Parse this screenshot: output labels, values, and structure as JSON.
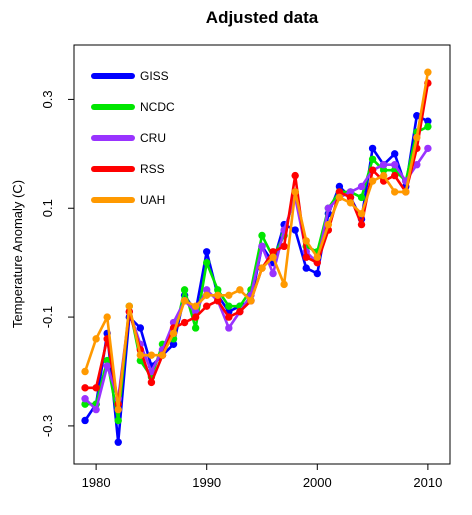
{
  "chart_data": {
    "type": "line",
    "title": "Adjusted data",
    "xlabel": "",
    "ylabel": "Temperature Anomaly (C)",
    "xlim": [
      1978,
      2012
    ],
    "ylim": [
      -0.37,
      0.4
    ],
    "x_ticks": [
      1980,
      1990,
      2000,
      2010
    ],
    "y_ticks": [
      -0.3,
      -0.1,
      0.1,
      0.3
    ],
    "y_tick_labels": [
      "-0.3",
      "-0.1",
      "0.1",
      "0.3"
    ],
    "grid": false,
    "legend_position": "top-left",
    "x": [
      1979,
      1980,
      1981,
      1982,
      1983,
      1984,
      1985,
      1986,
      1987,
      1988,
      1989,
      1990,
      1991,
      1992,
      1993,
      1994,
      1995,
      1996,
      1997,
      1998,
      1999,
      2000,
      2001,
      2002,
      2003,
      2004,
      2005,
      2006,
      2007,
      2008,
      2009,
      2010
    ],
    "series": [
      {
        "name": "GISS",
        "color": "#0000ff",
        "values": [
          -0.29,
          -0.26,
          -0.13,
          -0.33,
          -0.1,
          -0.12,
          -0.19,
          -0.17,
          -0.15,
          -0.06,
          -0.09,
          0.02,
          -0.06,
          -0.09,
          -0.08,
          -0.07,
          0.03,
          0.0,
          0.07,
          0.06,
          -0.01,
          -0.02,
          0.09,
          0.14,
          0.12,
          0.08,
          0.21,
          0.18,
          0.2,
          0.14,
          0.27,
          0.26
        ]
      },
      {
        "name": "NCDC",
        "color": "#00e600",
        "values": [
          -0.26,
          -0.26,
          -0.18,
          -0.29,
          -0.08,
          -0.18,
          -0.21,
          -0.15,
          -0.14,
          -0.05,
          -0.12,
          0.0,
          -0.05,
          -0.08,
          -0.08,
          -0.05,
          0.05,
          0.01,
          0.05,
          0.13,
          0.03,
          0.02,
          0.1,
          0.13,
          0.13,
          0.12,
          0.19,
          0.17,
          0.17,
          0.15,
          0.24,
          0.25
        ]
      },
      {
        "name": "CRU",
        "color": "#9933ff",
        "values": [
          -0.25,
          -0.27,
          -0.19,
          -0.25,
          -0.09,
          -0.15,
          -0.2,
          -0.16,
          -0.11,
          -0.07,
          -0.09,
          -0.05,
          -0.07,
          -0.12,
          -0.09,
          -0.06,
          0.03,
          -0.02,
          0.06,
          0.12,
          0.02,
          0.0,
          0.1,
          0.12,
          0.13,
          0.14,
          0.17,
          0.18,
          0.18,
          0.15,
          0.18,
          0.21
        ]
      },
      {
        "name": "RSS",
        "color": "#ff0000",
        "values": [
          -0.23,
          -0.23,
          -0.14,
          -0.26,
          -0.09,
          -0.16,
          -0.22,
          -0.17,
          -0.12,
          -0.11,
          -0.1,
          -0.08,
          -0.07,
          -0.1,
          -0.09,
          -0.07,
          -0.01,
          0.02,
          0.03,
          0.16,
          0.01,
          0.0,
          0.06,
          0.13,
          0.12,
          0.07,
          0.17,
          0.15,
          0.16,
          0.13,
          0.21,
          0.33
        ]
      },
      {
        "name": "UAH",
        "color": "#ff9900",
        "values": [
          -0.2,
          -0.14,
          -0.1,
          -0.27,
          -0.08,
          -0.17,
          -0.17,
          -0.17,
          -0.13,
          -0.07,
          -0.08,
          -0.06,
          -0.06,
          -0.06,
          -0.05,
          -0.07,
          -0.01,
          0.01,
          -0.04,
          0.13,
          0.04,
          0.01,
          0.07,
          0.12,
          0.11,
          0.09,
          0.15,
          0.16,
          0.13,
          0.13,
          0.23,
          0.35
        ]
      }
    ]
  }
}
